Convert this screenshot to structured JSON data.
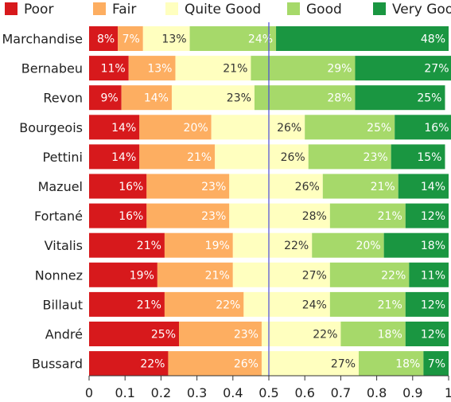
{
  "chart_data": {
    "type": "bar",
    "orientation": "horizontal",
    "stacked": true,
    "xlim": [
      0,
      1
    ],
    "x_ticks": [
      "0",
      "0.1",
      "0.2",
      "0.3",
      "0.4",
      "0.5",
      "0.6",
      "0.7",
      "0.8",
      "0.9",
      "1"
    ],
    "reference_line": 0.5,
    "grid": false,
    "legend_position": "top",
    "categories": [
      "Marchandise",
      "Bernabeu",
      "Revon",
      "Bourgeois",
      "Pettini",
      "Mazuel",
      "Fortané",
      "Vitalis",
      "Nonnez",
      "Billaut",
      "André",
      "Bussard"
    ],
    "series": [
      {
        "name": "Poor",
        "color": "#d7191c",
        "values": [
          0.08,
          0.11,
          0.09,
          0.14,
          0.14,
          0.16,
          0.16,
          0.21,
          0.19,
          0.21,
          0.25,
          0.22
        ],
        "labels": [
          "8%",
          "11%",
          "9%",
          "14%",
          "14%",
          "16%",
          "16%",
          "21%",
          "19%",
          "21%",
          "25%",
          "22%"
        ]
      },
      {
        "name": "Fair",
        "color": "#fdae61",
        "values": [
          0.07,
          0.13,
          0.14,
          0.2,
          0.21,
          0.23,
          0.23,
          0.19,
          0.21,
          0.22,
          0.23,
          0.26
        ],
        "labels": [
          "7%",
          "13%",
          "14%",
          "20%",
          "21%",
          "23%",
          "23%",
          "19%",
          "21%",
          "22%",
          "23%",
          "26%"
        ]
      },
      {
        "name": "Quite Good",
        "color": "#ffffbf",
        "values": [
          0.13,
          0.21,
          0.23,
          0.26,
          0.26,
          0.26,
          0.28,
          0.22,
          0.27,
          0.24,
          0.22,
          0.27
        ],
        "labels": [
          "13%",
          "21%",
          "23%",
          "26%",
          "26%",
          "26%",
          "28%",
          "22%",
          "27%",
          "24%",
          "22%",
          "27%"
        ]
      },
      {
        "name": "Good",
        "color": "#a6d96a",
        "values": [
          0.24,
          0.29,
          0.28,
          0.25,
          0.23,
          0.21,
          0.21,
          0.2,
          0.22,
          0.21,
          0.18,
          0.18
        ],
        "labels": [
          "24%",
          "29%",
          "28%",
          "25%",
          "23%",
          "21%",
          "21%",
          "20%",
          "22%",
          "21%",
          "18%",
          "18%"
        ]
      },
      {
        "name": "Very Good",
        "color": "#1a9641",
        "values": [
          0.48,
          0.27,
          0.25,
          0.16,
          0.15,
          0.14,
          0.12,
          0.18,
          0.11,
          0.12,
          0.12,
          0.07
        ],
        "labels": [
          "48%",
          "27%",
          "25%",
          "16%",
          "15%",
          "14%",
          "12%",
          "18%",
          "11%",
          "12%",
          "12%",
          "7%"
        ]
      }
    ]
  }
}
